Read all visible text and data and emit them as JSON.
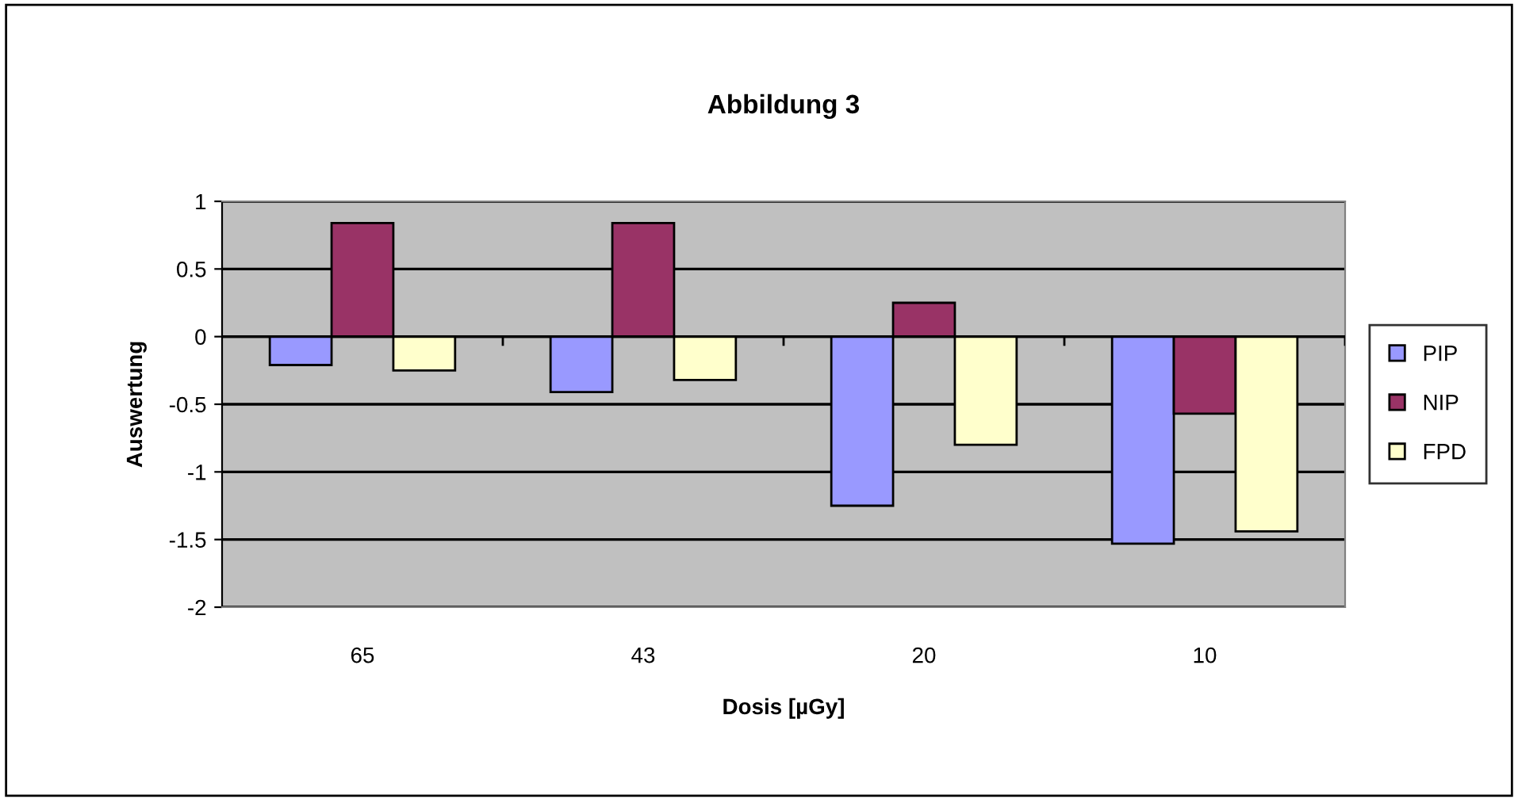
{
  "chart_data": {
    "type": "bar",
    "title": "Abbildung 3",
    "xlabel": "Dosis [µGy]",
    "ylabel": "Auswertung",
    "categories": [
      "65",
      "43",
      "20",
      "10"
    ],
    "series": [
      {
        "name": "PIP",
        "color": "#9999ff",
        "values": [
          -0.21,
          -0.41,
          -1.25,
          -1.53
        ]
      },
      {
        "name": "NIP",
        "color": "#993366",
        "values": [
          0.84,
          0.84,
          0.25,
          -0.57
        ]
      },
      {
        "name": "FPD",
        "color": "#ffffcc",
        "values": [
          -0.25,
          -0.32,
          -0.8,
          -1.44
        ]
      }
    ],
    "ylim": [
      -2,
      1
    ],
    "yticks": [
      -2,
      -1.5,
      -1,
      -0.5,
      0,
      0.5,
      1
    ],
    "grid": "y",
    "legend": "right"
  }
}
